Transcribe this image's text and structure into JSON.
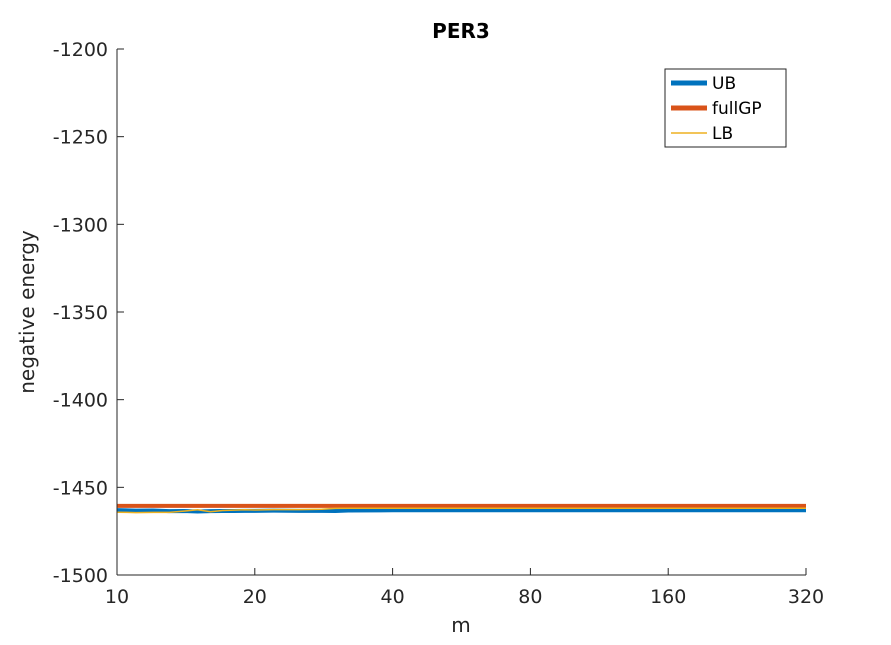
{
  "chart_data": {
    "type": "line",
    "title": "PER3",
    "xlabel": "m",
    "ylabel": "negative energy",
    "xscale": "log2",
    "xlim": [
      10,
      320
    ],
    "ylim": [
      -1500,
      -1200
    ],
    "xticks": [
      10,
      20,
      40,
      80,
      160,
      320
    ],
    "xtick_labels": [
      "10",
      "20",
      "40",
      "80",
      "160",
      "320"
    ],
    "yticks": [
      -1200,
      -1250,
      -1300,
      -1350,
      -1400,
      -1450,
      -1500
    ],
    "ytick_labels": [
      "-1200",
      "-1250",
      "-1300",
      "-1350",
      "-1400",
      "-1450",
      "-1500"
    ],
    "grid": false,
    "legend_position": "top-right",
    "series": [
      {
        "name": "UB",
        "color": "#0072BD",
        "x": [
          10,
          11,
          12,
          13,
          14,
          15,
          16,
          17,
          18,
          19,
          20,
          22,
          25,
          28,
          30,
          32,
          40,
          60,
          80,
          120,
          160,
          240,
          320
        ],
        "y": [
          -1463.0,
          -1463.3,
          -1463.2,
          -1463.6,
          -1463.5,
          -1463.8,
          -1463.6,
          -1463.5,
          -1463.5,
          -1463.4,
          -1463.4,
          -1463.3,
          -1463.4,
          -1463.4,
          -1463.5,
          -1463.2,
          -1463.1,
          -1463.1,
          -1463.1,
          -1463.1,
          -1463.1,
          -1463.1,
          -1463.1
        ]
      },
      {
        "name": "fullGP",
        "color": "#D95319",
        "x": [
          10,
          320
        ],
        "y": [
          -1460.6,
          -1460.6
        ]
      },
      {
        "name": "LB",
        "color": "#EDB120",
        "x": [
          10,
          11,
          12,
          13,
          14,
          15,
          16,
          17,
          18,
          19,
          20,
          22,
          25,
          28,
          30,
          32,
          40,
          60,
          80,
          120,
          160,
          240,
          320
        ],
        "y": [
          -1464.2,
          -1464.4,
          -1464.3,
          -1464.3,
          -1463.6,
          -1462.8,
          -1463.9,
          -1463.2,
          -1463.0,
          -1462.8,
          -1462.9,
          -1462.7,
          -1462.7,
          -1462.5,
          -1462.0,
          -1461.9,
          -1461.9,
          -1461.9,
          -1461.9,
          -1461.9,
          -1461.9,
          -1461.9,
          -1461.9
        ]
      }
    ]
  }
}
